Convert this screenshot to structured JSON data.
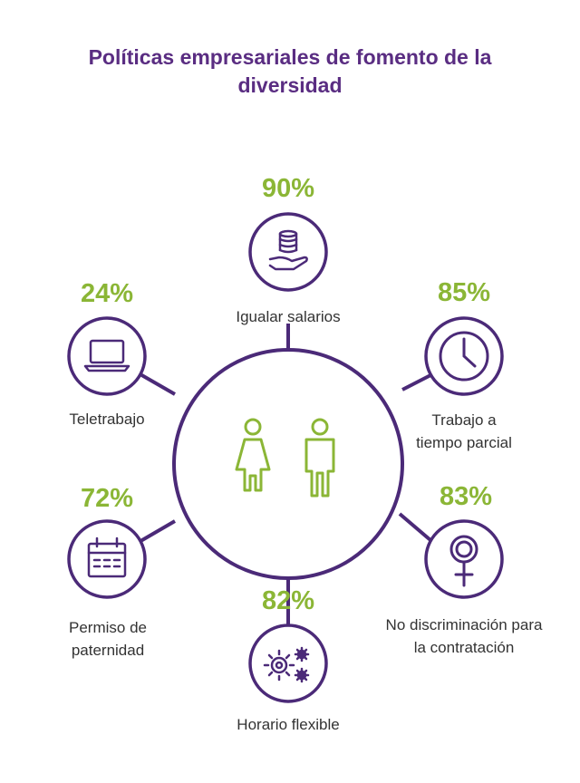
{
  "title": "Políticas empresariales de fomento de la diversidad",
  "colors": {
    "primary": "#4b2a78",
    "accent": "#8bb636",
    "text": "#333333"
  },
  "center": {
    "icons": [
      "woman-icon",
      "man-icon"
    ]
  },
  "policies": [
    {
      "icon": "money-hand-icon",
      "value": "90%",
      "label": "Igualar salarios"
    },
    {
      "icon": "clock-icon",
      "value": "85%",
      "label": "Trabajo a tiempo parcial"
    },
    {
      "icon": "female-symbol-icon",
      "value": "83%",
      "label": "No discriminación para la contratación"
    },
    {
      "icon": "gears-icon",
      "value": "82%",
      "label": "Horario flexible"
    },
    {
      "icon": "calendar-icon",
      "value": "72%",
      "label": "Permiso de paternidad"
    },
    {
      "icon": "laptop-icon",
      "value": "24%",
      "label": "Teletrabajo"
    }
  ]
}
